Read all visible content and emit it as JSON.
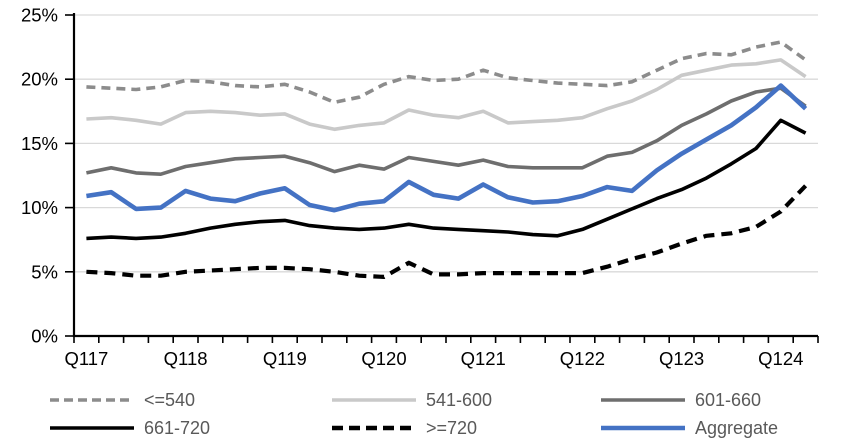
{
  "chart_data": {
    "type": "line",
    "title": "",
    "x_axis": {
      "categories": [
        "Q1 2017",
        "Q2 2017",
        "Q3 2017",
        "Q4 2017",
        "Q1 2018",
        "Q2 2018",
        "Q3 2018",
        "Q4 2018",
        "Q1 2019",
        "Q2 2019",
        "Q3 2019",
        "Q4 2019",
        "Q1 2020",
        "Q2 2020",
        "Q3 2020",
        "Q4 2020",
        "Q1 2021",
        "Q2 2021",
        "Q3 2021",
        "Q4 2021",
        "Q1 2022",
        "Q2 2022",
        "Q3 2022",
        "Q4 2022",
        "Q1 2023",
        "Q2 2023",
        "Q3 2023",
        "Q4 2023",
        "Q1 2024",
        "Q2 2024"
      ],
      "tick_labels": [
        "Q117",
        "Q118",
        "Q119",
        "Q120",
        "Q121",
        "Q122",
        "Q123",
        "Q124"
      ],
      "label_every_n": 4
    },
    "y_axis": {
      "min": 0,
      "max": 25,
      "step": 5,
      "format": "percent",
      "tick_labels": [
        "0%",
        "5%",
        "10%",
        "15%",
        "20%",
        "25%"
      ]
    },
    "grid": {
      "horizontal": true,
      "vertical": false,
      "color": "#D9D9D9"
    },
    "axis_color": "#000000",
    "legend": {
      "position": "bottom",
      "text_color": "#595959",
      "rows": [
        [
          "<=540",
          "541-600",
          "601-660"
        ],
        [
          "661-720",
          ">=720",
          "Aggregate"
        ]
      ]
    },
    "series": [
      {
        "name": "<=540",
        "color": "#8C8C8C",
        "style": "dashed",
        "values": [
          19.4,
          19.3,
          19.2,
          19.4,
          19.9,
          19.8,
          19.5,
          19.4,
          19.6,
          19.0,
          18.2,
          18.6,
          19.6,
          20.2,
          19.9,
          20.0,
          20.7,
          20.1,
          19.9,
          19.7,
          19.6,
          19.5,
          19.8,
          20.7,
          21.6,
          22.0,
          21.9,
          22.5,
          22.9,
          21.5
        ]
      },
      {
        "name": "541-600",
        "color": "#C9C9C9",
        "style": "solid",
        "values": [
          16.9,
          17.0,
          16.8,
          16.5,
          17.4,
          17.5,
          17.4,
          17.2,
          17.3,
          16.5,
          16.1,
          16.4,
          16.6,
          17.6,
          17.2,
          17.0,
          17.5,
          16.6,
          16.7,
          16.8,
          17.0,
          17.7,
          18.3,
          19.2,
          20.3,
          20.7,
          21.1,
          21.2,
          21.5,
          20.2
        ]
      },
      {
        "name": "601-660",
        "color": "#6E6E6E",
        "style": "solid",
        "values": [
          12.7,
          13.1,
          12.7,
          12.6,
          13.2,
          13.5,
          13.8,
          13.9,
          14.0,
          13.5,
          12.8,
          13.3,
          13.0,
          13.9,
          13.6,
          13.3,
          13.7,
          13.2,
          13.1,
          13.1,
          13.1,
          14.0,
          14.3,
          15.2,
          16.4,
          17.3,
          18.3,
          19.0,
          19.3,
          17.9
        ]
      },
      {
        "name": "661-720",
        "color": "#000000",
        "style": "solid",
        "values": [
          7.6,
          7.7,
          7.6,
          7.7,
          8.0,
          8.4,
          8.7,
          8.9,
          9.0,
          8.6,
          8.4,
          8.3,
          8.4,
          8.7,
          8.4,
          8.3,
          8.2,
          8.1,
          7.9,
          7.8,
          8.3,
          9.1,
          9.9,
          10.7,
          11.4,
          12.3,
          13.4,
          14.6,
          16.8,
          15.8
        ]
      },
      {
        "name": ">=720",
        "color": "#000000",
        "style": "dashed",
        "values": [
          5.0,
          4.9,
          4.7,
          4.7,
          5.0,
          5.1,
          5.2,
          5.3,
          5.3,
          5.2,
          5.0,
          4.7,
          4.6,
          5.7,
          4.8,
          4.8,
          4.9,
          4.9,
          4.9,
          4.9,
          4.9,
          5.4,
          6.0,
          6.5,
          7.2,
          7.8,
          8.0,
          8.5,
          9.7,
          11.7
        ]
      },
      {
        "name": "Aggregate",
        "color": "#4472C4",
        "style": "solid",
        "values": [
          10.9,
          11.2,
          9.9,
          10.0,
          11.3,
          10.7,
          10.5,
          11.1,
          11.5,
          10.2,
          9.8,
          10.3,
          10.5,
          12.0,
          11.0,
          10.7,
          11.8,
          10.8,
          10.4,
          10.5,
          10.9,
          11.6,
          11.3,
          12.9,
          14.2,
          15.3,
          16.4,
          17.8,
          19.5,
          17.7
        ]
      }
    ]
  }
}
